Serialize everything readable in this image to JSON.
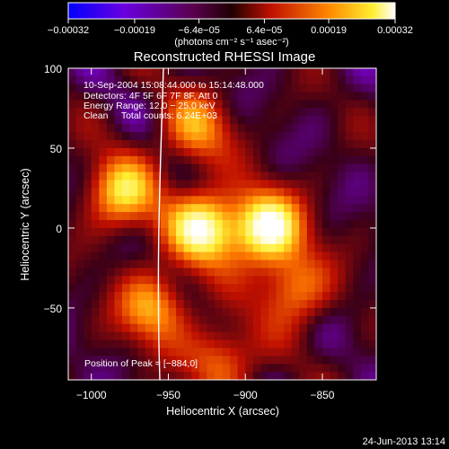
{
  "chart_data": {
    "type": "heatmap",
    "title": "Reconstructed RHESSI Image",
    "xlabel": "Heliocentric X (arcsec)",
    "ylabel": "Heliocentric Y (arcsec)",
    "xlim": [
      -1015,
      -815
    ],
    "ylim": [
      -95,
      100
    ],
    "x_ticks": [
      -1000,
      -950,
      -900,
      -850
    ],
    "x_tick_labels": [
      "−1000",
      "−950",
      "−900",
      "−850"
    ],
    "y_ticks": [
      -50,
      0,
      50,
      100
    ],
    "y_tick_labels": [
      "−50",
      "0",
      "50",
      "100"
    ],
    "colorbar": {
      "ticks": [
        -0.00032,
        -0.00019,
        -6.4e-05,
        6.4e-05,
        0.00019,
        0.00032
      ],
      "tick_labels": [
        "−0.00032",
        "−0.00019",
        "−6.4e−05",
        "6.4e−05",
        "0.00019",
        "0.00032"
      ],
      "units_label": "(photons cm⁻² s⁻¹ asec⁻²)",
      "range": [
        -0.00032,
        0.00032
      ],
      "colors": [
        "#0000ff",
        "#7a00d6",
        "#3a0018",
        "#c01000",
        "#ff7a00",
        "#ffee30",
        "#ffffff"
      ]
    },
    "info_lines": [
      "10-Sep-2004 15:08:44.000 to 15:14:48.000",
      "Detectors: 4F 5F 6F 7F 8F, Att 0",
      "Energy Range: 12.0 − 25.0 keV",
      "Clean     Total counts: 6.24E+03"
    ],
    "peak_label": "Position of Peak = [−884,0]",
    "peak_position": [
      -884,
      0
    ],
    "limb_line": true,
    "sources": [
      {
        "x": -886,
        "y": 0,
        "value": 0.00032
      },
      {
        "x": -927,
        "y": 0,
        "value": 0.00029
      },
      {
        "x": -980,
        "y": 22,
        "value": 0.0002
      },
      {
        "x": -960,
        "y": -50,
        "value": 0.00015
      },
      {
        "x": -932,
        "y": 62,
        "value": 0.00012
      },
      {
        "x": -868,
        "y": -38,
        "value": 0.00012
      },
      {
        "x": -915,
        "y": -82,
        "value": 0.0001
      }
    ]
  },
  "footer": {
    "date": "24-Jun-2013 13:14"
  }
}
